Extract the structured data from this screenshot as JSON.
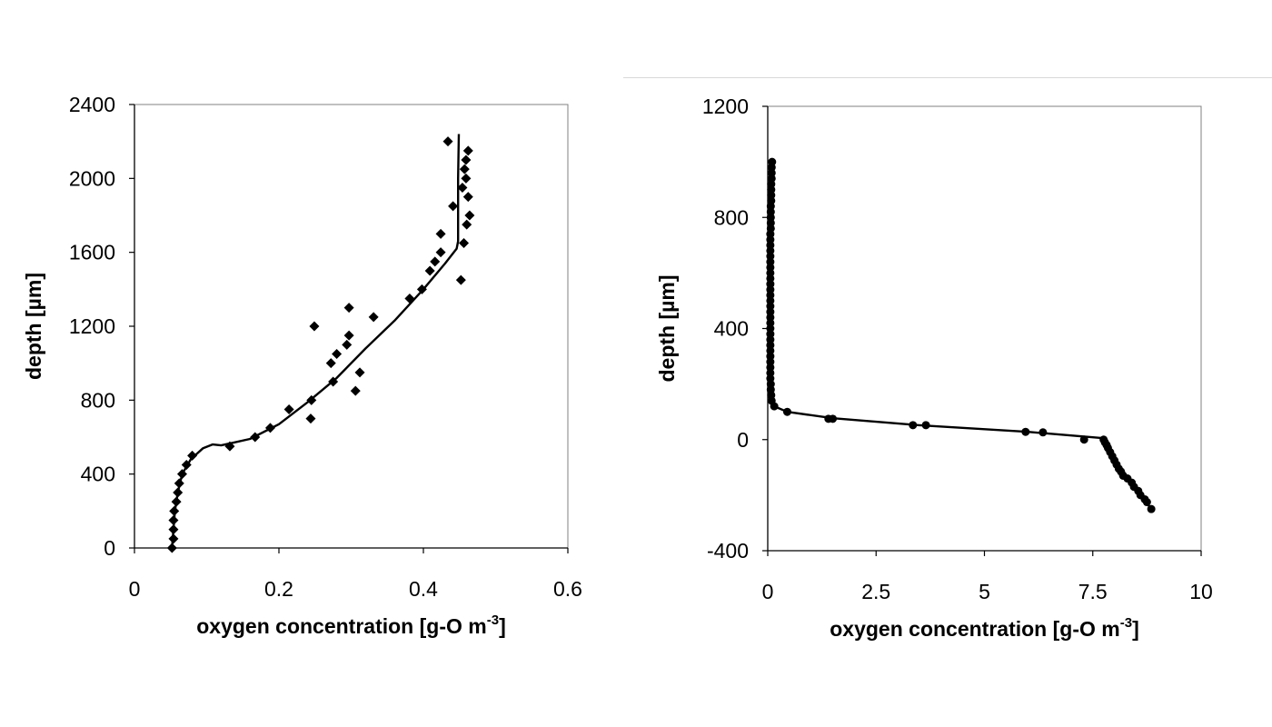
{
  "chart_data": [
    {
      "type": "scatter",
      "xlabel": "oxygen concentration [g-O m",
      "xlabel_sup": "-3",
      "xlabel_end": "]",
      "ylabel": "depth [µm]",
      "xlim": [
        0,
        0.6
      ],
      "ylim": [
        0,
        2400
      ],
      "x_ticks": [
        0,
        0.2,
        0.4,
        0.6
      ],
      "x_tick_labels": [
        "0",
        "0.2",
        "0.4",
        "0.6"
      ],
      "y_ticks": [
        0,
        400,
        800,
        1200,
        1600,
        2000,
        2400
      ],
      "y_tick_labels": [
        "0",
        "400",
        "800",
        "1200",
        "1600",
        "2000",
        "2400"
      ],
      "grid": false,
      "series": [
        {
          "kind": "markers",
          "marker": "diamond",
          "points": [
            [
              0.052,
              0
            ],
            [
              0.054,
              50
            ],
            [
              0.054,
              100
            ],
            [
              0.054,
              150
            ],
            [
              0.055,
              200
            ],
            [
              0.058,
              250
            ],
            [
              0.06,
              300
            ],
            [
              0.062,
              350
            ],
            [
              0.066,
              400
            ],
            [
              0.072,
              450
            ],
            [
              0.08,
              500
            ],
            [
              0.132,
              550
            ],
            [
              0.167,
              600
            ],
            [
              0.188,
              650
            ],
            [
              0.244,
              700
            ],
            [
              0.214,
              750
            ],
            [
              0.245,
              800
            ],
            [
              0.306,
              850
            ],
            [
              0.275,
              900
            ],
            [
              0.312,
              950
            ],
            [
              0.272,
              1000
            ],
            [
              0.28,
              1050
            ],
            [
              0.294,
              1100
            ],
            [
              0.297,
              1150
            ],
            [
              0.249,
              1200
            ],
            [
              0.331,
              1250
            ],
            [
              0.297,
              1300
            ],
            [
              0.381,
              1350
            ],
            [
              0.398,
              1400
            ],
            [
              0.452,
              1450
            ],
            [
              0.409,
              1500
            ],
            [
              0.416,
              1550
            ],
            [
              0.424,
              1600
            ],
            [
              0.456,
              1650
            ],
            [
              0.424,
              1700
            ],
            [
              0.46,
              1750
            ],
            [
              0.464,
              1800
            ],
            [
              0.441,
              1850
            ],
            [
              0.462,
              1900
            ],
            [
              0.454,
              1950
            ],
            [
              0.459,
              2000
            ],
            [
              0.457,
              2050
            ],
            [
              0.459,
              2100
            ],
            [
              0.462,
              2150
            ],
            [
              0.434,
              2200
            ]
          ]
        },
        {
          "kind": "line",
          "points": [
            [
              0.052,
              0
            ],
            [
              0.054,
              100
            ],
            [
              0.056,
              200
            ],
            [
              0.06,
              300
            ],
            [
              0.066,
              400
            ],
            [
              0.078,
              480
            ],
            [
              0.095,
              540
            ],
            [
              0.108,
              560
            ],
            [
              0.12,
              555
            ],
            [
              0.16,
              590
            ],
            [
              0.2,
              670
            ],
            [
              0.24,
              790
            ],
            [
              0.28,
              920
            ],
            [
              0.32,
              1080
            ],
            [
              0.36,
              1230
            ],
            [
              0.4,
              1400
            ],
            [
              0.43,
              1540
            ],
            [
              0.446,
              1620
            ],
            [
              0.448,
              1660
            ],
            [
              0.448,
              2000
            ],
            [
              0.449,
              2240
            ]
          ]
        }
      ]
    },
    {
      "type": "scatter",
      "xlabel": "oxygen concentration [g-O m",
      "xlabel_sup": "-3",
      "xlabel_end": "]",
      "ylabel": "depth [µm]",
      "xlim": [
        0,
        10
      ],
      "ylim": [
        -400,
        1200
      ],
      "x_ticks": [
        0,
        2.5,
        5,
        7.5,
        10
      ],
      "x_tick_labels": [
        "0",
        "2.5",
        "5",
        "7.5",
        "10"
      ],
      "y_ticks": [
        -400,
        0,
        400,
        800,
        1200
      ],
      "y_tick_labels": [
        "-400",
        "0",
        "400",
        "800",
        "1200"
      ],
      "grid": false,
      "series": [
        {
          "kind": "markers",
          "marker": "circle",
          "points": [
            [
              0.1,
              1000
            ],
            [
              0.09,
              980
            ],
            [
              0.09,
              960
            ],
            [
              0.09,
              940
            ],
            [
              0.08,
              920
            ],
            [
              0.08,
              900
            ],
            [
              0.08,
              880
            ],
            [
              0.08,
              860
            ],
            [
              0.07,
              840
            ],
            [
              0.07,
              820
            ],
            [
              0.07,
              800
            ],
            [
              0.07,
              780
            ],
            [
              0.07,
              760
            ],
            [
              0.06,
              740
            ],
            [
              0.06,
              720
            ],
            [
              0.06,
              700
            ],
            [
              0.06,
              680
            ],
            [
              0.06,
              660
            ],
            [
              0.06,
              640
            ],
            [
              0.06,
              620
            ],
            [
              0.06,
              600
            ],
            [
              0.06,
              580
            ],
            [
              0.06,
              560
            ],
            [
              0.06,
              540
            ],
            [
              0.06,
              520
            ],
            [
              0.06,
              500
            ],
            [
              0.06,
              480
            ],
            [
              0.06,
              460
            ],
            [
              0.06,
              440
            ],
            [
              0.06,
              420
            ],
            [
              0.06,
              400
            ],
            [
              0.06,
              380
            ],
            [
              0.06,
              360
            ],
            [
              0.06,
              340
            ],
            [
              0.06,
              320
            ],
            [
              0.06,
              300
            ],
            [
              0.06,
              280
            ],
            [
              0.06,
              260
            ],
            [
              0.06,
              240
            ],
            [
              0.06,
              220
            ],
            [
              0.07,
              200
            ],
            [
              0.07,
              180
            ],
            [
              0.08,
              160
            ],
            [
              0.09,
              140
            ],
            [
              0.15,
              120
            ],
            [
              0.45,
              100
            ],
            [
              1.4,
              75
            ],
            [
              1.5,
              75
            ],
            [
              3.35,
              52
            ],
            [
              3.65,
              52
            ],
            [
              5.95,
              28
            ],
            [
              6.35,
              26
            ],
            [
              7.3,
              0
            ],
            [
              7.75,
              0
            ],
            [
              7.78,
              -10
            ],
            [
              7.82,
              -20
            ],
            [
              7.85,
              -30
            ],
            [
              7.9,
              -45
            ],
            [
              7.95,
              -60
            ],
            [
              8.0,
              -75
            ],
            [
              8.05,
              -90
            ],
            [
              8.1,
              -105
            ],
            [
              8.15,
              -115
            ],
            [
              8.2,
              -130
            ],
            [
              8.3,
              -140
            ],
            [
              8.4,
              -155
            ],
            [
              8.45,
              -170
            ],
            [
              8.55,
              -185
            ],
            [
              8.6,
              -200
            ],
            [
              8.7,
              -215
            ],
            [
              8.75,
              -225
            ],
            [
              8.85,
              -250
            ]
          ]
        },
        {
          "kind": "line",
          "points": [
            [
              0.1,
              1000
            ],
            [
              0.07,
              800
            ],
            [
              0.06,
              600
            ],
            [
              0.06,
              400
            ],
            [
              0.06,
              200
            ],
            [
              0.08,
              150
            ],
            [
              0.15,
              120
            ],
            [
              0.45,
              100
            ],
            [
              1.5,
              77
            ],
            [
              3.5,
              52
            ],
            [
              6.0,
              28
            ],
            [
              7.0,
              15
            ],
            [
              7.75,
              5
            ],
            [
              8.1,
              -90
            ],
            [
              8.5,
              -180
            ],
            [
              8.85,
              -250
            ]
          ]
        }
      ]
    }
  ]
}
